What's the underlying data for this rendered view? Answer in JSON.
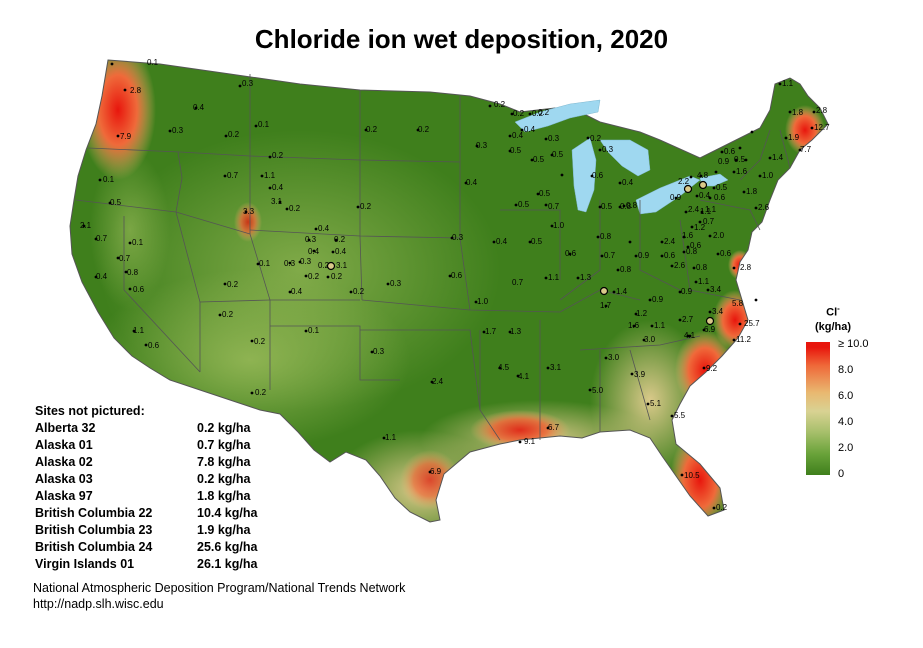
{
  "title": "Chloride ion wet deposition, 2020",
  "legend": {
    "title": "Cl",
    "title_superscript": "-",
    "unit": "(kg/ha)",
    "ticks": [
      "≥ 10.0",
      "8.0",
      "6.0",
      "4.0",
      "2.0",
      "0"
    ],
    "colors": {
      "high": "#e8160d",
      "mid": "#d9d293",
      "low": "#3f7f1c",
      "water": "#9fd8f0"
    }
  },
  "sites_not_pictured": {
    "heading": "Sites not pictured:",
    "rows": [
      {
        "name": "Alberta 32",
        "value": "0.2 kg/ha"
      },
      {
        "name": "Alaska 01",
        "value": "0.7 kg/ha"
      },
      {
        "name": "Alaska 02",
        "value": "7.8 kg/ha"
      },
      {
        "name": "Alaska 03",
        "value": "0.2 kg/ha"
      },
      {
        "name": "Alaska 97",
        "value": "1.8 kg/ha"
      },
      {
        "name": "British Columbia 22",
        "value": "10.4 kg/ha"
      },
      {
        "name": "British Columbia 23",
        "value": "1.9 kg/ha"
      },
      {
        "name": "British Columbia 24",
        "value": "25.6 kg/ha"
      },
      {
        "name": "Virgin Islands 01",
        "value": "26.1 kg/ha"
      }
    ]
  },
  "credit": {
    "line1": "National Atmospheric Deposition Program/National Trends Network",
    "line2": "http://nadp.slh.wisc.edu"
  },
  "site_values": [
    "0.1",
    "2.8",
    "7.9",
    "0.4",
    "0.3",
    "0.3",
    "0.2",
    "0.1",
    "0.2",
    "0.2",
    "0.2",
    "0.1",
    "0.7",
    "1.1",
    "0.4",
    "3.1",
    "0.2",
    "3.3",
    "0.5",
    "2.1",
    "0.7",
    "0.1",
    "0.7",
    "0.4",
    "0.8",
    "0.6",
    "0.2",
    "0.4",
    "0.3",
    "0.2",
    "0.4",
    "0.4",
    "0.1",
    "0.3",
    "0.3",
    "0.2",
    "3.1",
    "0.2",
    "0.2",
    "0.4",
    "0.2",
    "0.3",
    "0.2",
    "0.1",
    "0.2",
    "1.1",
    "0.6",
    "0.2",
    "0.3",
    "0.2",
    "2.4",
    "1.1",
    "6.9",
    "0.2",
    "0.3",
    "0.2",
    "0.2",
    "0.4",
    "0.5",
    "0.7",
    "0.5",
    "0.4",
    "0.5",
    "0.4",
    "0.5",
    "0.5",
    "0.3",
    "0.2",
    "0.2",
    "0.3",
    "0.3",
    "0.6",
    "0.4",
    "0.5",
    "0.6",
    "0.4",
    "0.8",
    "0.5",
    "1.0",
    "0.8",
    "0.6",
    "0.7",
    "0.7",
    "1.1",
    "1.3",
    "1.0",
    "1.7",
    "1.3",
    "4.5",
    "4.1",
    "3.1",
    "9.1",
    "6.7",
    "3.0",
    "5.0",
    "3.9",
    "5.1",
    "5.5",
    "0.2",
    "10.5",
    "2.2",
    "4.8",
    "0.9",
    "0.5",
    "0.4",
    "0.6",
    "0.8",
    "1.1",
    "1.9",
    "1.8",
    "2.8",
    "12.7",
    "1.1",
    "0.6",
    "0.9",
    "0.5",
    "1.6",
    "1.0",
    "1.4",
    "7.7",
    "2.4",
    "1.1",
    "0.7",
    "1.8",
    "2.6",
    "1.2",
    "2.0",
    "1.6",
    "0.6",
    "2.4",
    "0.9",
    "0.6",
    "0.8",
    "0.6",
    "2.6",
    "0.8",
    "0.8",
    "1.1",
    "1.4",
    "1.7",
    "0.9",
    "1.2",
    "1.6",
    "0.9",
    "3.4",
    "2.8",
    "5.8",
    "3.4",
    "6.9",
    "4.1",
    "2.7",
    "1.1",
    "3.0",
    "11.2",
    "25.7",
    "9.2",
    "4.1"
  ]
}
